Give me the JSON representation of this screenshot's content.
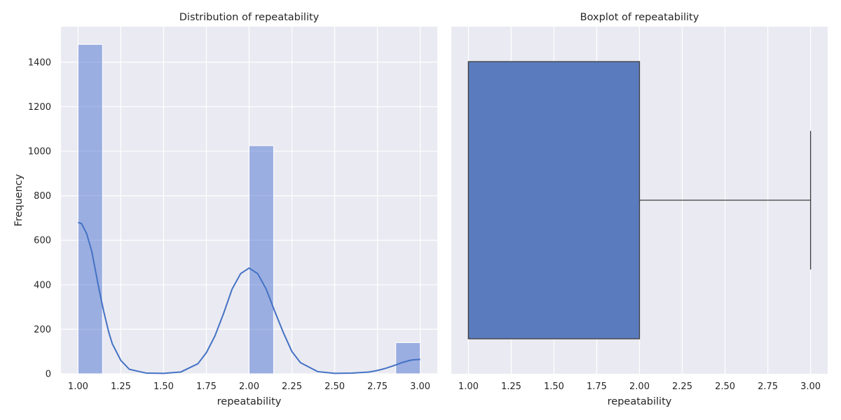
{
  "chart_data": [
    {
      "type": "bar",
      "subtype": "histogram_with_kde",
      "title": "Distribution of repeatability",
      "xlabel": "repeatability",
      "ylabel": "Frequency",
      "xlim": [
        0.9,
        3.1
      ],
      "ylim": [
        0,
        1560
      ],
      "xticks": [
        "1.00",
        "1.25",
        "1.50",
        "1.75",
        "2.00",
        "2.25",
        "2.50",
        "2.75",
        "3.00"
      ],
      "xtick_values": [
        1.0,
        1.25,
        1.5,
        1.75,
        2.0,
        2.25,
        2.5,
        2.75,
        3.0
      ],
      "yticks": [
        "0",
        "200",
        "400",
        "600",
        "800",
        "1000",
        "1200",
        "1400"
      ],
      "ytick_values": [
        0,
        200,
        400,
        600,
        800,
        1000,
        1200,
        1400
      ],
      "grid": true,
      "bar_color": "#4c72d0",
      "bars": [
        {
          "x0": 1.0,
          "x1": 1.143,
          "value": 1480
        },
        {
          "x0": 2.0,
          "x1": 2.143,
          "value": 1025
        },
        {
          "x0": 2.857,
          "x1": 3.0,
          "value": 140
        }
      ],
      "kde": {
        "color": "#4472c4",
        "x": [
          1.0,
          1.02,
          1.05,
          1.08,
          1.1,
          1.12,
          1.15,
          1.18,
          1.2,
          1.25,
          1.3,
          1.4,
          1.5,
          1.6,
          1.7,
          1.75,
          1.8,
          1.85,
          1.9,
          1.95,
          2.0,
          2.05,
          2.1,
          2.15,
          2.2,
          2.25,
          2.3,
          2.4,
          2.5,
          2.6,
          2.7,
          2.75,
          2.8,
          2.85,
          2.9,
          2.95,
          3.0
        ],
        "y": [
          680,
          675,
          630,
          550,
          470,
          390,
          280,
          185,
          135,
          60,
          20,
          3,
          2,
          8,
          45,
          95,
          170,
          270,
          380,
          450,
          475,
          450,
          380,
          280,
          185,
          100,
          50,
          10,
          2,
          3,
          8,
          15,
          25,
          38,
          52,
          62,
          65
        ]
      }
    },
    {
      "type": "box",
      "title": "Boxplot of repeatability",
      "xlabel": "repeatability",
      "xlim": [
        0.9,
        3.1
      ],
      "xticks": [
        "1.00",
        "1.25",
        "1.50",
        "1.75",
        "2.00",
        "2.25",
        "2.50",
        "2.75",
        "3.00"
      ],
      "xtick_values": [
        1.0,
        1.25,
        1.5,
        1.75,
        2.0,
        2.25,
        2.5,
        2.75,
        3.0
      ],
      "grid": true,
      "box_color": "#5b7bbf",
      "line_color": "#3d3d3d",
      "stats": {
        "min": 1.0,
        "q1": 1.0,
        "median": 1.0,
        "q3": 2.0,
        "max": 3.0
      }
    }
  ]
}
